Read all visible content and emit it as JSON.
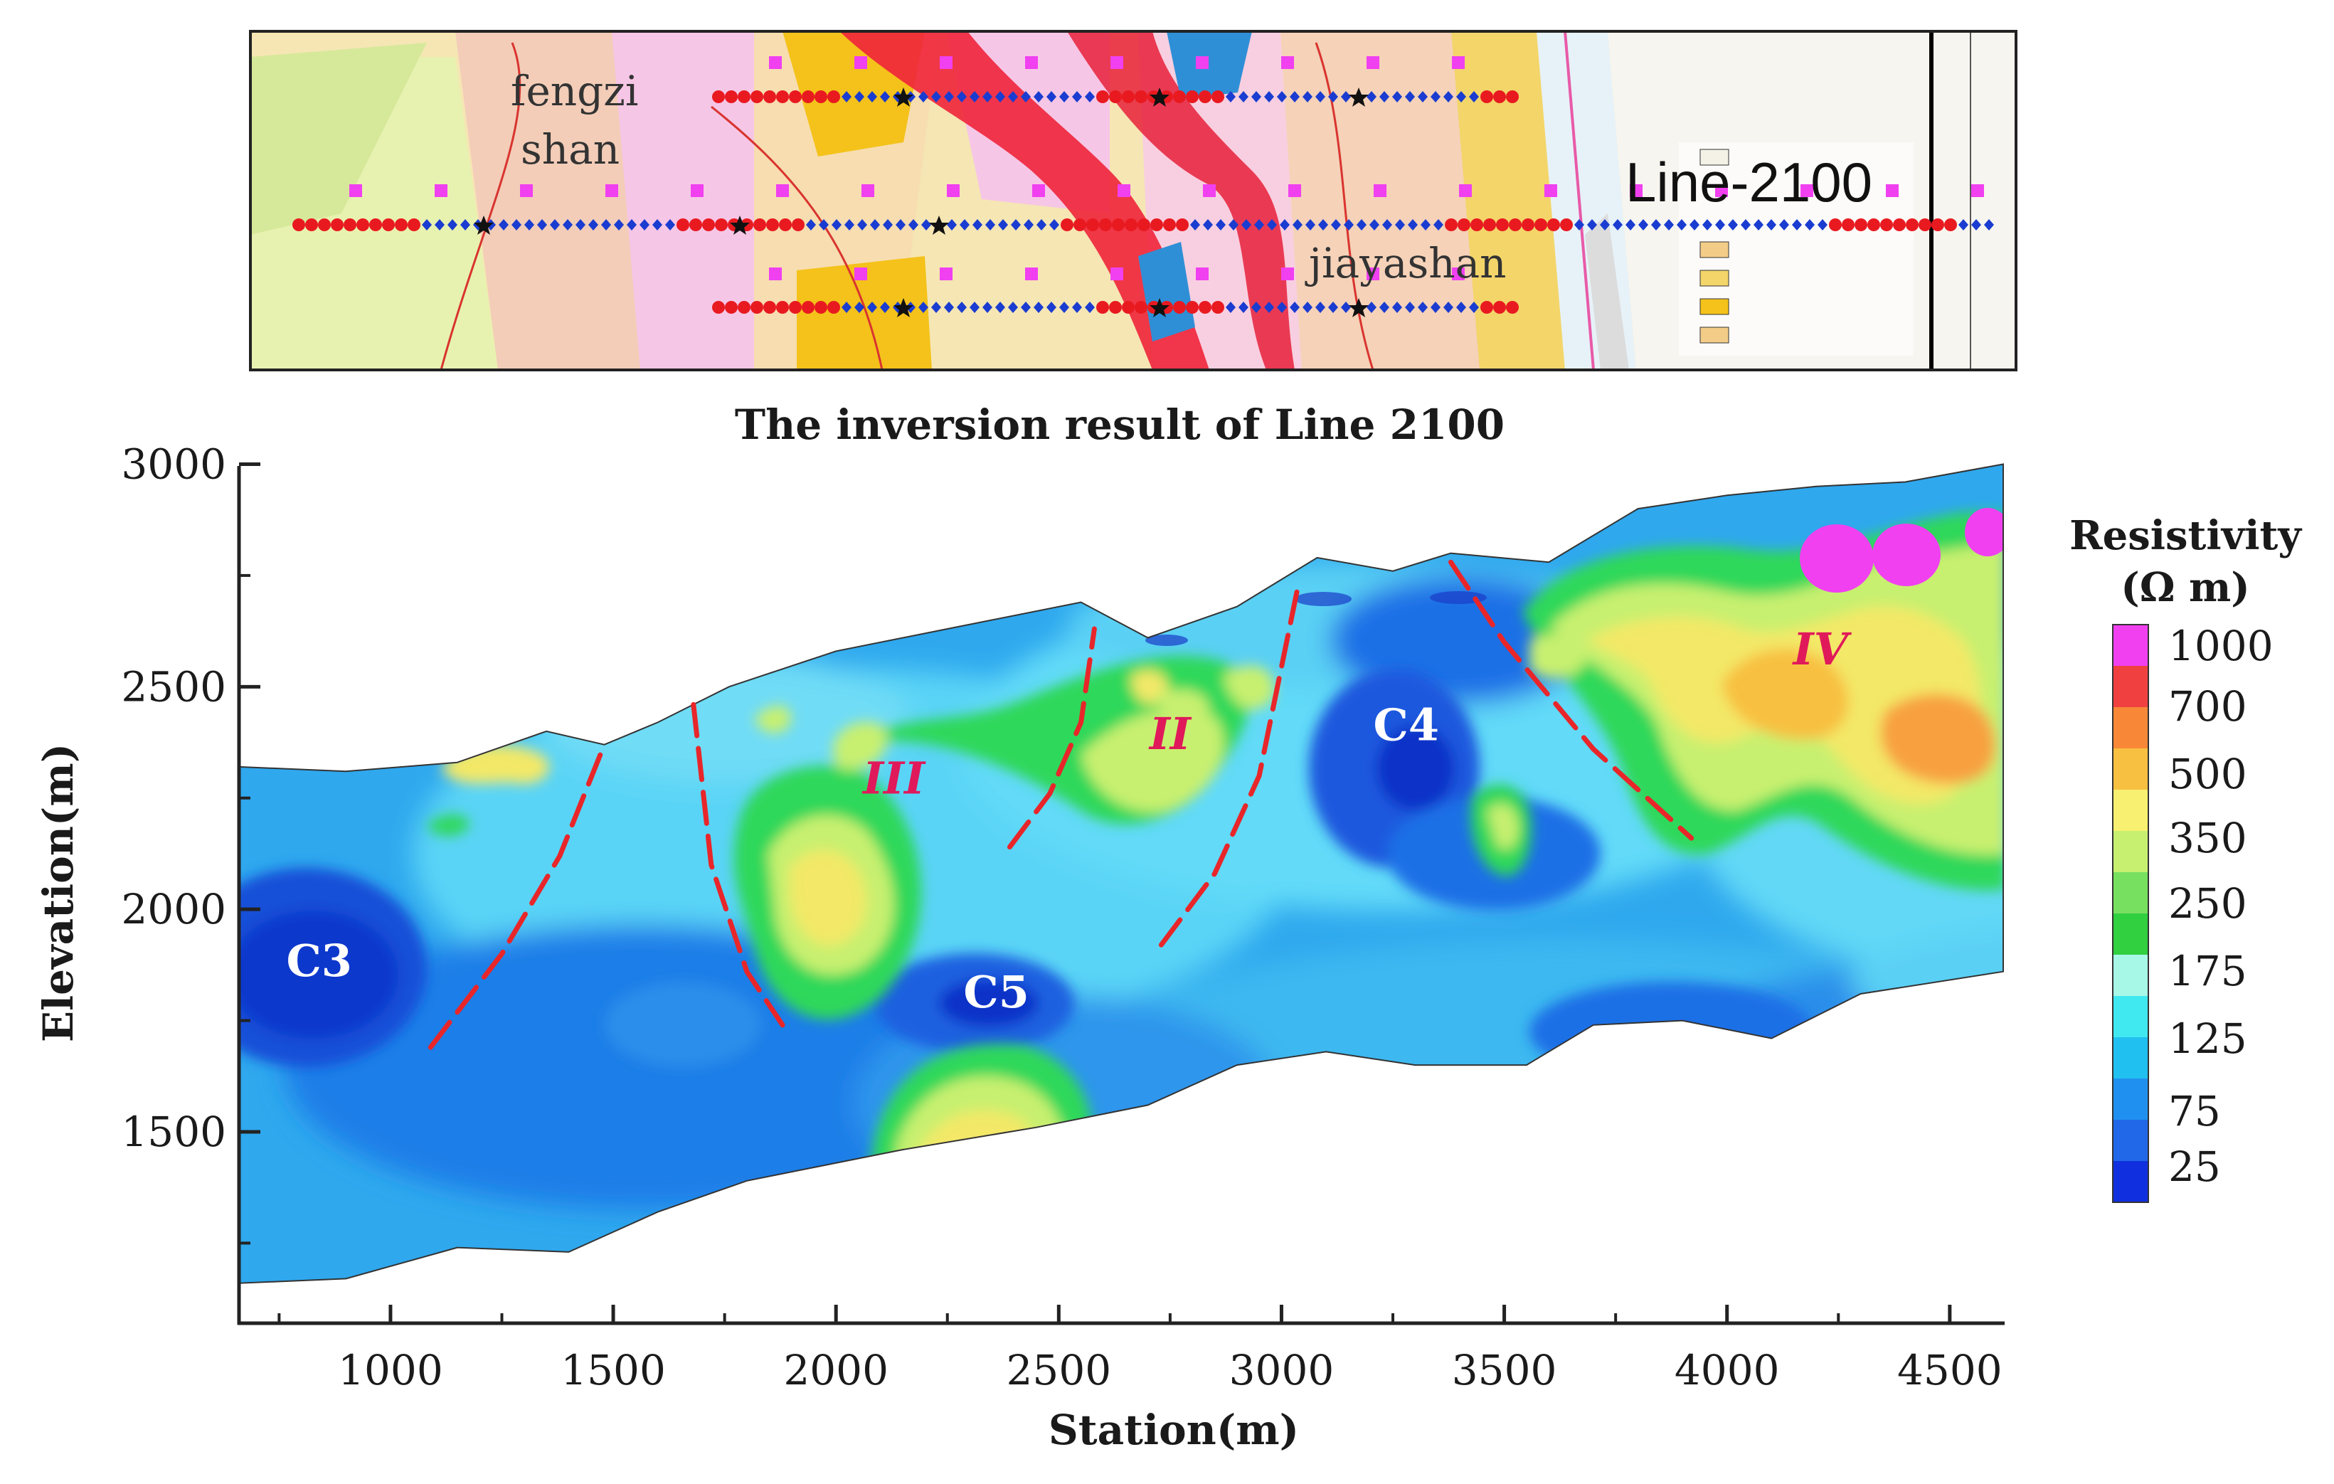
{
  "map_panel": {
    "place_labels": {
      "fengzi_line1": "fengzi",
      "fengzi_line2": "shan",
      "jiayashan": "jiayashan"
    },
    "line_label": "Line-2100"
  },
  "chart_data": {
    "type": "heatmap",
    "title": "The inversion result of Line 2100",
    "xlabel": "Station(m)",
    "ylabel": "Elevation(m)",
    "xlim": [
      660,
      4620
    ],
    "ylim": [
      1070,
      3020
    ],
    "x_ticks": [
      "1000",
      "1500",
      "2000",
      "2500",
      "3000",
      "3500",
      "4000",
      "4500"
    ],
    "y_ticks": [
      "1500",
      "2000",
      "2500",
      "3000"
    ],
    "top_surface": [
      [
        660,
        2320
      ],
      [
        900,
        2310
      ],
      [
        1150,
        2330
      ],
      [
        1350,
        2400
      ],
      [
        1480,
        2370
      ],
      [
        1600,
        2420
      ],
      [
        1760,
        2500
      ],
      [
        2000,
        2580
      ],
      [
        2250,
        2630
      ],
      [
        2550,
        2690
      ],
      [
        2700,
        2610
      ],
      [
        2900,
        2680
      ],
      [
        3080,
        2790
      ],
      [
        3250,
        2760
      ],
      [
        3380,
        2800
      ],
      [
        3600,
        2780
      ],
      [
        3800,
        2900
      ],
      [
        4000,
        2930
      ],
      [
        4200,
        2950
      ],
      [
        4400,
        2960
      ],
      [
        4620,
        3000
      ]
    ],
    "bottom_surface": [
      [
        4620,
        1860
      ],
      [
        4300,
        1810
      ],
      [
        4100,
        1710
      ],
      [
        3900,
        1750
      ],
      [
        3700,
        1740
      ],
      [
        3550,
        1650
      ],
      [
        3300,
        1650
      ],
      [
        3100,
        1680
      ],
      [
        2900,
        1650
      ],
      [
        2700,
        1560
      ],
      [
        2450,
        1510
      ],
      [
        2150,
        1460
      ],
      [
        1950,
        1420
      ],
      [
        1800,
        1390
      ],
      [
        1600,
        1320
      ],
      [
        1400,
        1230
      ],
      [
        1150,
        1240
      ],
      [
        900,
        1170
      ],
      [
        660,
        1160
      ]
    ],
    "anomalies": [
      {
        "label": "C3",
        "x": 840,
        "y": 1850,
        "color": "#ffffff"
      },
      {
        "label": "C5",
        "x": 2360,
        "y": 1780,
        "color": "#ffffff"
      },
      {
        "label": "C4",
        "x": 3280,
        "y": 2380,
        "color": "#ffffff"
      },
      {
        "label": "III",
        "x": 2130,
        "y": 2260,
        "color": "#e0195a"
      },
      {
        "label": "II",
        "x": 2750,
        "y": 2360,
        "color": "#e0195a"
      },
      {
        "label": "IV",
        "x": 4210,
        "y": 2550,
        "color": "#e0195a"
      }
    ],
    "faults": [
      [
        [
          1090,
          1690
        ],
        [
          1250,
          1900
        ],
        [
          1380,
          2120
        ],
        [
          1480,
          2370
        ]
      ],
      [
        [
          1680,
          2460
        ],
        [
          1720,
          2100
        ],
        [
          1800,
          1860
        ],
        [
          1880,
          1740
        ]
      ],
      [
        [
          2390,
          2140
        ],
        [
          2480,
          2260
        ],
        [
          2550,
          2420
        ],
        [
          2580,
          2630
        ]
      ],
      [
        [
          2730,
          1920
        ],
        [
          2850,
          2080
        ],
        [
          2950,
          2300
        ],
        [
          3040,
          2740
        ]
      ],
      [
        [
          3380,
          2780
        ],
        [
          3500,
          2600
        ],
        [
          3700,
          2360
        ],
        [
          3920,
          2160
        ]
      ]
    ],
    "colorbar": {
      "title_line1": "Resistivity",
      "title_line2": "(Ω m)",
      "labels": [
        "1000",
        "700",
        "500",
        "350",
        "250",
        "175",
        "125",
        "75",
        "25"
      ],
      "colors": [
        "#f040f0",
        "#f04040",
        "#f88838",
        "#f8c040",
        "#f8f070",
        "#c8f070",
        "#78e060",
        "#30d040",
        "#a8f8e8",
        "#40e8f0",
        "#20c0f0",
        "#2090f0",
        "#2068e8",
        "#1030e0"
      ]
    }
  }
}
